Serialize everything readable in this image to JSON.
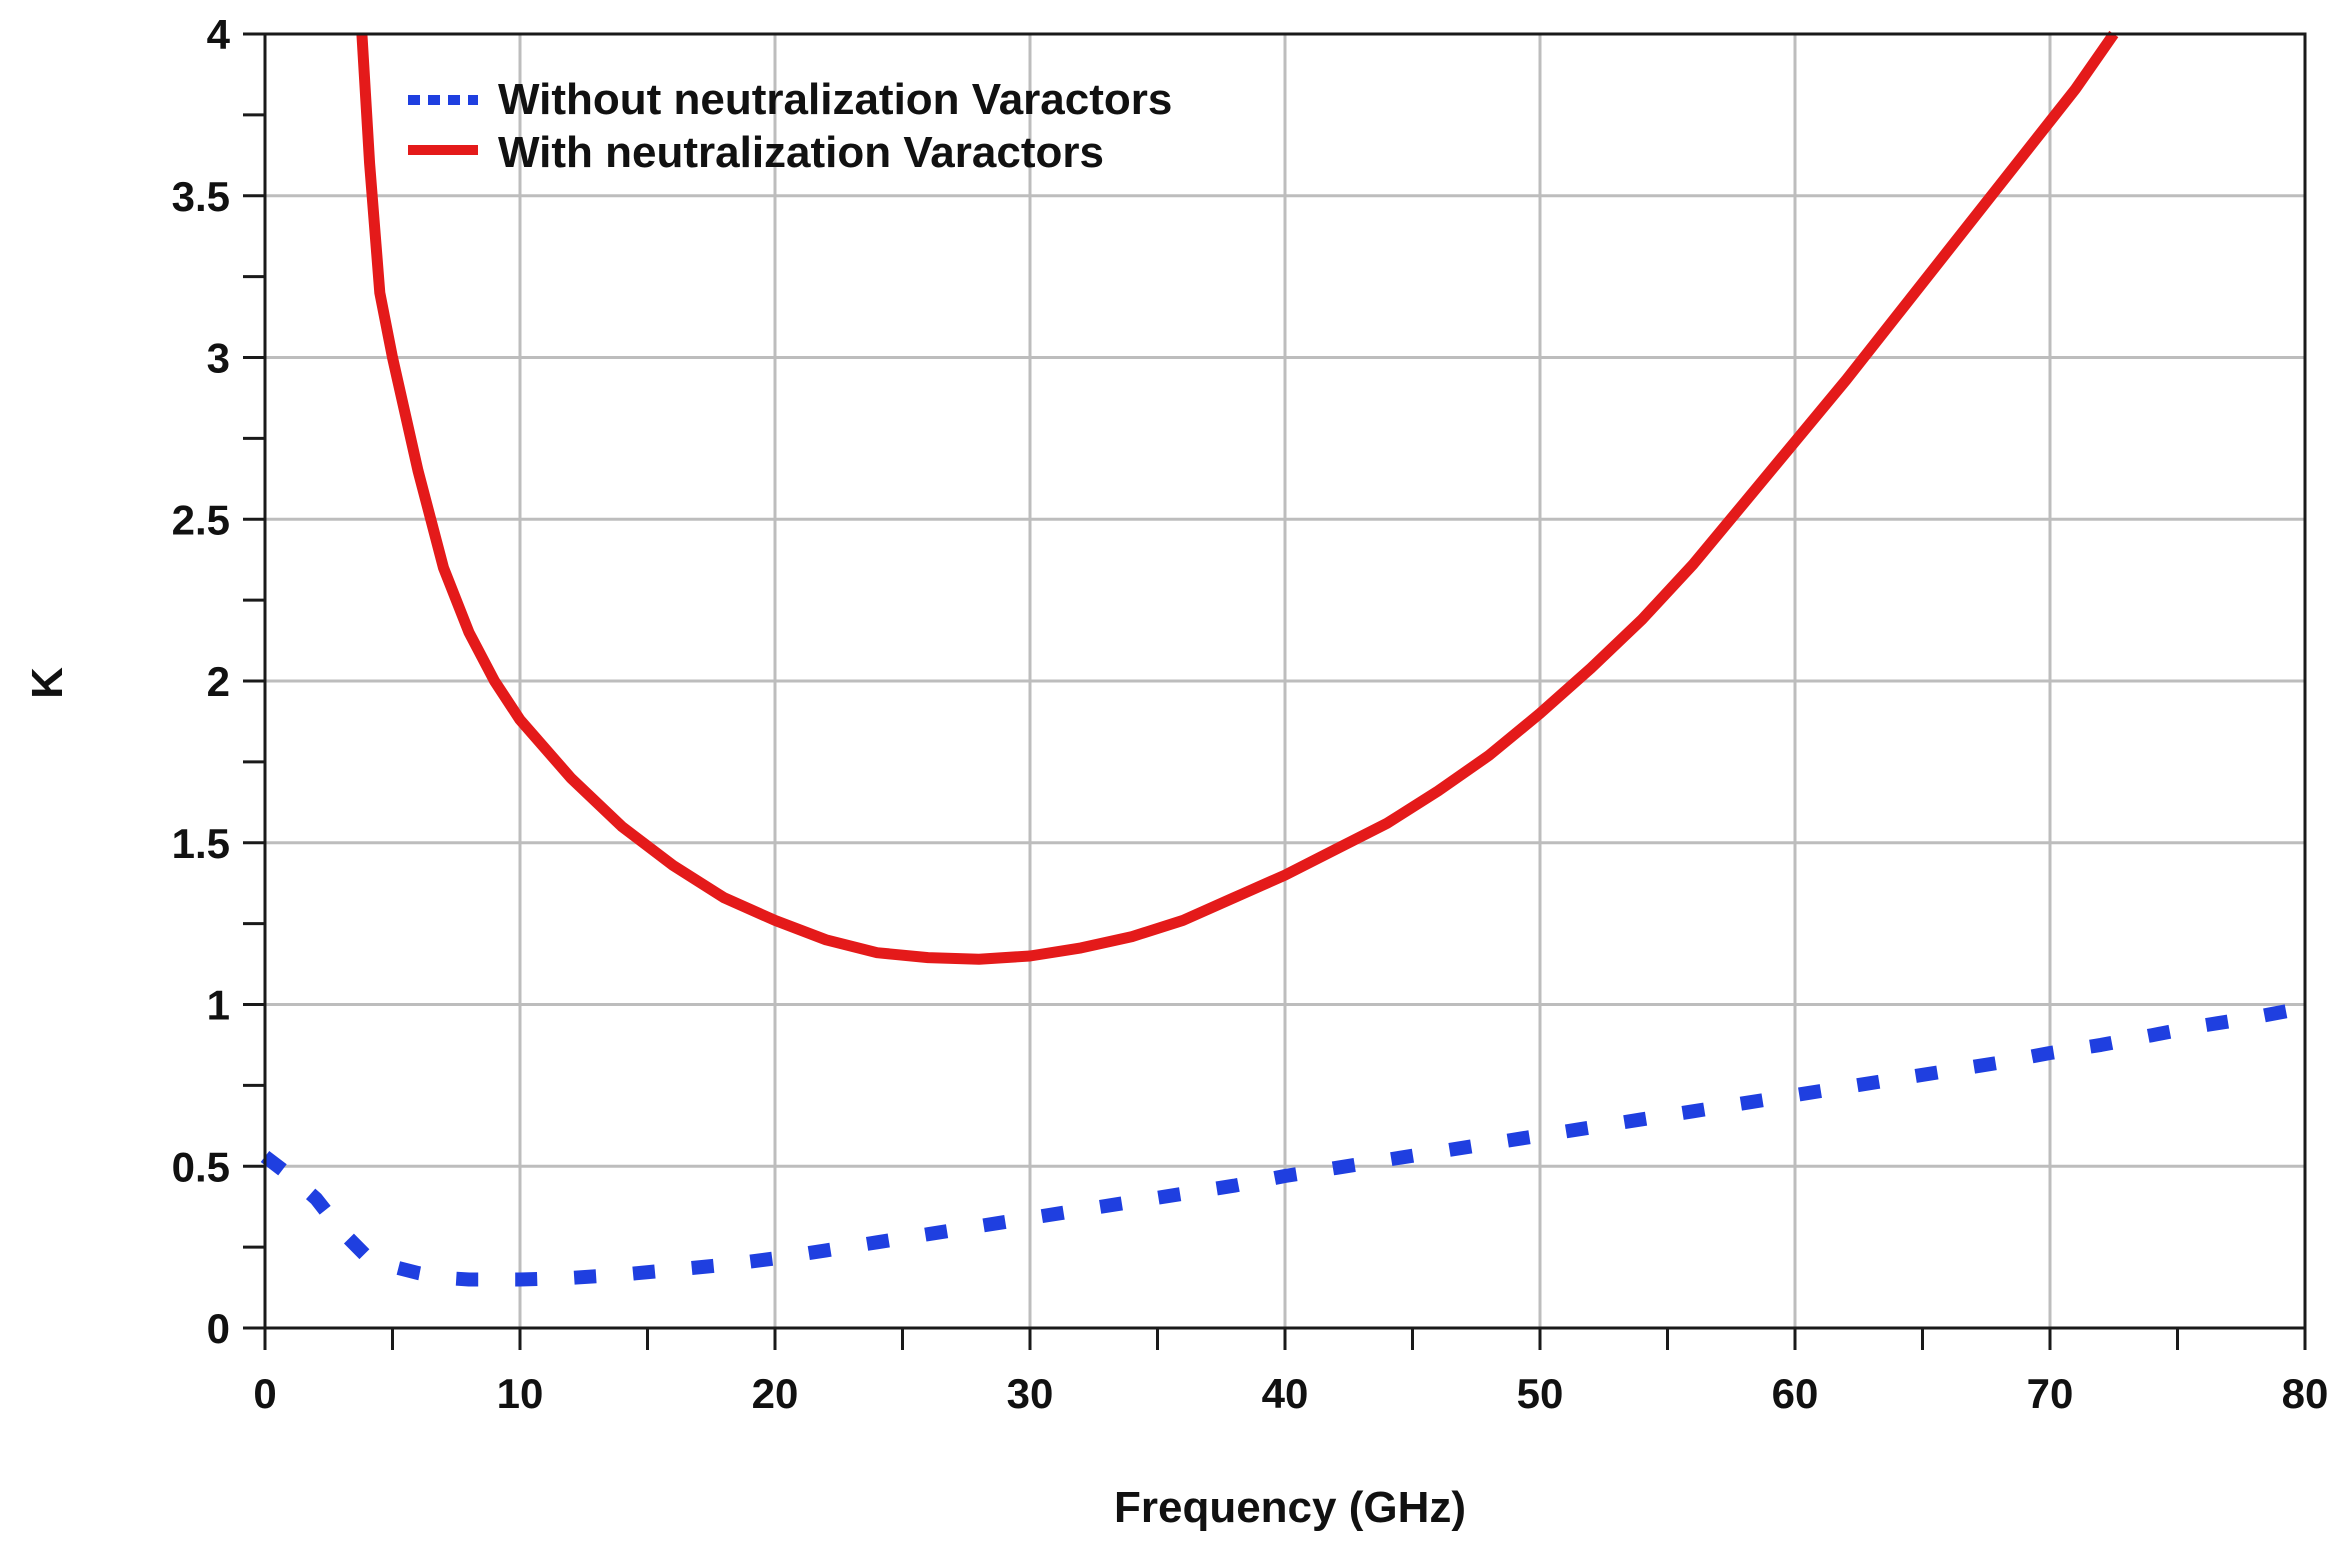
{
  "chart_data": {
    "type": "line",
    "title": "",
    "xlabel": "Frequency  (GHz)",
    "ylabel": "K",
    "xlim": [
      0,
      80
    ],
    "ylim": [
      0,
      4
    ],
    "grid": true,
    "legend_position": "top-left",
    "x_ticks": [
      0,
      10,
      20,
      30,
      40,
      50,
      60,
      70,
      80
    ],
    "x_tick_labels": [
      "0",
      "10",
      "20",
      "30",
      "40",
      "50",
      "60",
      "70",
      "80"
    ],
    "y_ticks": [
      0,
      0.5,
      1,
      1.5,
      2,
      2.5,
      3,
      3.5,
      4
    ],
    "y_tick_labels": [
      "0",
      "0.5",
      "1",
      "1.5",
      "2",
      "2.5",
      "3",
      "3.5",
      "4"
    ],
    "series": [
      {
        "name": "Without neutralization Varactors",
        "style": "dotted",
        "color": "#1f3fe0",
        "x": [
          0,
          1,
          2,
          3,
          4,
          5,
          6,
          7,
          8,
          10,
          12,
          14,
          16,
          18,
          20,
          22,
          24,
          26,
          28,
          30,
          32,
          34,
          36,
          38,
          40,
          42,
          44,
          46,
          48,
          50,
          52,
          54,
          56,
          58,
          60,
          62,
          64,
          66,
          68,
          70,
          72,
          74,
          76,
          78,
          80
        ],
        "y": [
          0.53,
          0.47,
          0.4,
          0.3,
          0.22,
          0.19,
          0.17,
          0.155,
          0.15,
          0.15,
          0.155,
          0.165,
          0.18,
          0.195,
          0.215,
          0.24,
          0.265,
          0.29,
          0.315,
          0.34,
          0.365,
          0.39,
          0.415,
          0.44,
          0.47,
          0.495,
          0.52,
          0.545,
          0.57,
          0.595,
          0.62,
          0.645,
          0.67,
          0.695,
          0.72,
          0.745,
          0.77,
          0.795,
          0.82,
          0.85,
          0.875,
          0.905,
          0.935,
          0.96,
          0.99
        ]
      },
      {
        "name": "With neutralization Varactors",
        "style": "solid",
        "color": "#e41a1a",
        "x": [
          3.8,
          4.1,
          4.5,
          5,
          6,
          7,
          8,
          9,
          10,
          12,
          14,
          16,
          18,
          20,
          22,
          24,
          26,
          28,
          30,
          32,
          34,
          36,
          38,
          40,
          42,
          44,
          46,
          48,
          50,
          52,
          54,
          56,
          58,
          60,
          62,
          64,
          66,
          68,
          70,
          71,
          72.5
        ],
        "y": [
          4.0,
          3.6,
          3.2,
          3.0,
          2.65,
          2.35,
          2.15,
          2.0,
          1.88,
          1.7,
          1.55,
          1.43,
          1.33,
          1.26,
          1.2,
          1.16,
          1.145,
          1.14,
          1.15,
          1.175,
          1.21,
          1.26,
          1.33,
          1.4,
          1.48,
          1.56,
          1.66,
          1.77,
          1.9,
          2.04,
          2.19,
          2.36,
          2.55,
          2.74,
          2.93,
          3.13,
          3.33,
          3.53,
          3.73,
          3.83,
          4.0
        ]
      }
    ]
  }
}
